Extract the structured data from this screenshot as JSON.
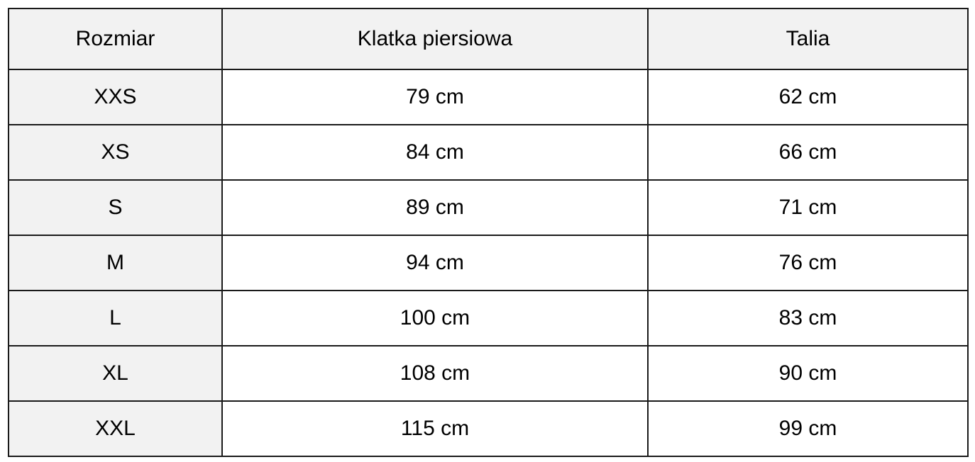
{
  "table": {
    "headers": [
      "Rozmiar",
      "Klatka piersiowa",
      "Talia"
    ],
    "rows": [
      [
        "XXS",
        "79 cm",
        "62 cm"
      ],
      [
        "XS",
        "84 cm",
        "66 cm"
      ],
      [
        "S",
        "89 cm",
        "71 cm"
      ],
      [
        "M",
        "94 cm",
        "76 cm"
      ],
      [
        "L",
        "100 cm",
        "83 cm"
      ],
      [
        "XL",
        "108 cm",
        "90 cm"
      ],
      [
        "XXL",
        "115 cm",
        "99 cm"
      ]
    ]
  },
  "colors": {
    "header_background": "#f2f2f2",
    "size_column_background": "#f2f2f2",
    "border": "#1a1a1a",
    "text": "#000000"
  }
}
